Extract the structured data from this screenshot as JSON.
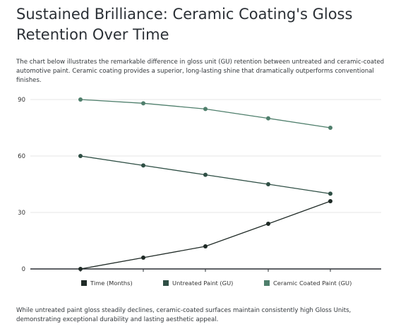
{
  "title": "Sustained Brilliance: Ceramic Coating's Gloss Retention Over Time",
  "description": "The chart below illustrates the remarkable difference in gloss unit (GU) retention between untreated and ceramic-coated automotive paint. Ceramic coating provides a superior, long-lasting shine that dramatically outperforms conventional finishes.",
  "footer": "While untreated paint gloss steadily declines, ceramic-coated surfaces maintain consistently high Gloss Units, demonstrating exceptional durability and lasting aesthetic appeal.",
  "chart_data": {
    "type": "line",
    "categories": [
      "",
      "",
      "",
      "",
      ""
    ],
    "series": [
      {
        "name": "Time (Months)",
        "values": [
          0,
          6,
          12,
          24,
          36
        ],
        "color": "#1f2a26"
      },
      {
        "name": "Untreated Paint (GU)",
        "values": [
          60,
          55,
          50,
          45,
          40
        ],
        "color": "#2f4f45"
      },
      {
        "name": "Ceramic Coated Paint (GU)",
        "values": [
          90,
          88,
          85,
          80,
          75
        ],
        "color": "#4f7f6c"
      }
    ],
    "ylim": [
      0,
      90
    ],
    "yticks": [
      "0",
      "30",
      "60",
      "90"
    ],
    "grid": true,
    "legend": "bottom"
  }
}
